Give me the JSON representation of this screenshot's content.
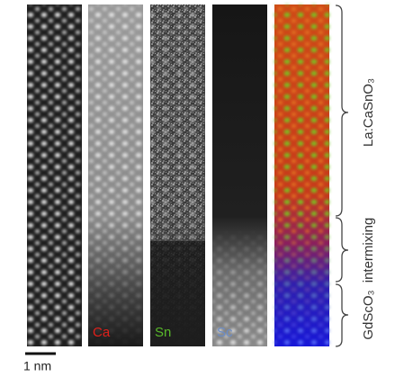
{
  "element_labels": [
    "Ca",
    "Sn",
    "Sc"
  ],
  "scale_bar": "1 nm",
  "regions": [
    {
      "label": "La:CaSnO₃"
    },
    {
      "label": "intermixing"
    },
    {
      "label": "GdScO₃"
    }
  ]
}
